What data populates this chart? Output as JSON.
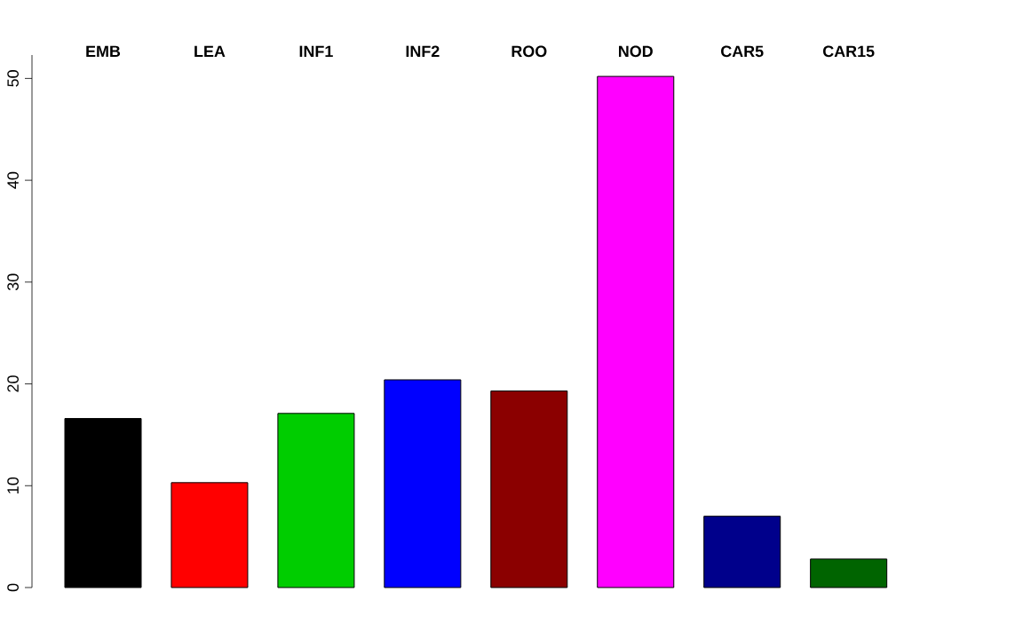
{
  "chart_data": {
    "type": "bar",
    "categories": [
      "EMB",
      "LEA",
      "INF1",
      "INF2",
      "ROO",
      "NOD",
      "CAR5",
      "CAR15"
    ],
    "values": [
      16.6,
      10.3,
      17.1,
      20.4,
      19.3,
      50.2,
      7.0,
      2.8
    ],
    "colors": [
      "#000000",
      "#ff0000",
      "#00cd00",
      "#0000ff",
      "#8b0000",
      "#ff00ff",
      "#00008b",
      "#006400"
    ],
    "ylim": [
      0,
      52.3
    ],
    "yticks": [
      0,
      10,
      20,
      30,
      40,
      50
    ]
  }
}
